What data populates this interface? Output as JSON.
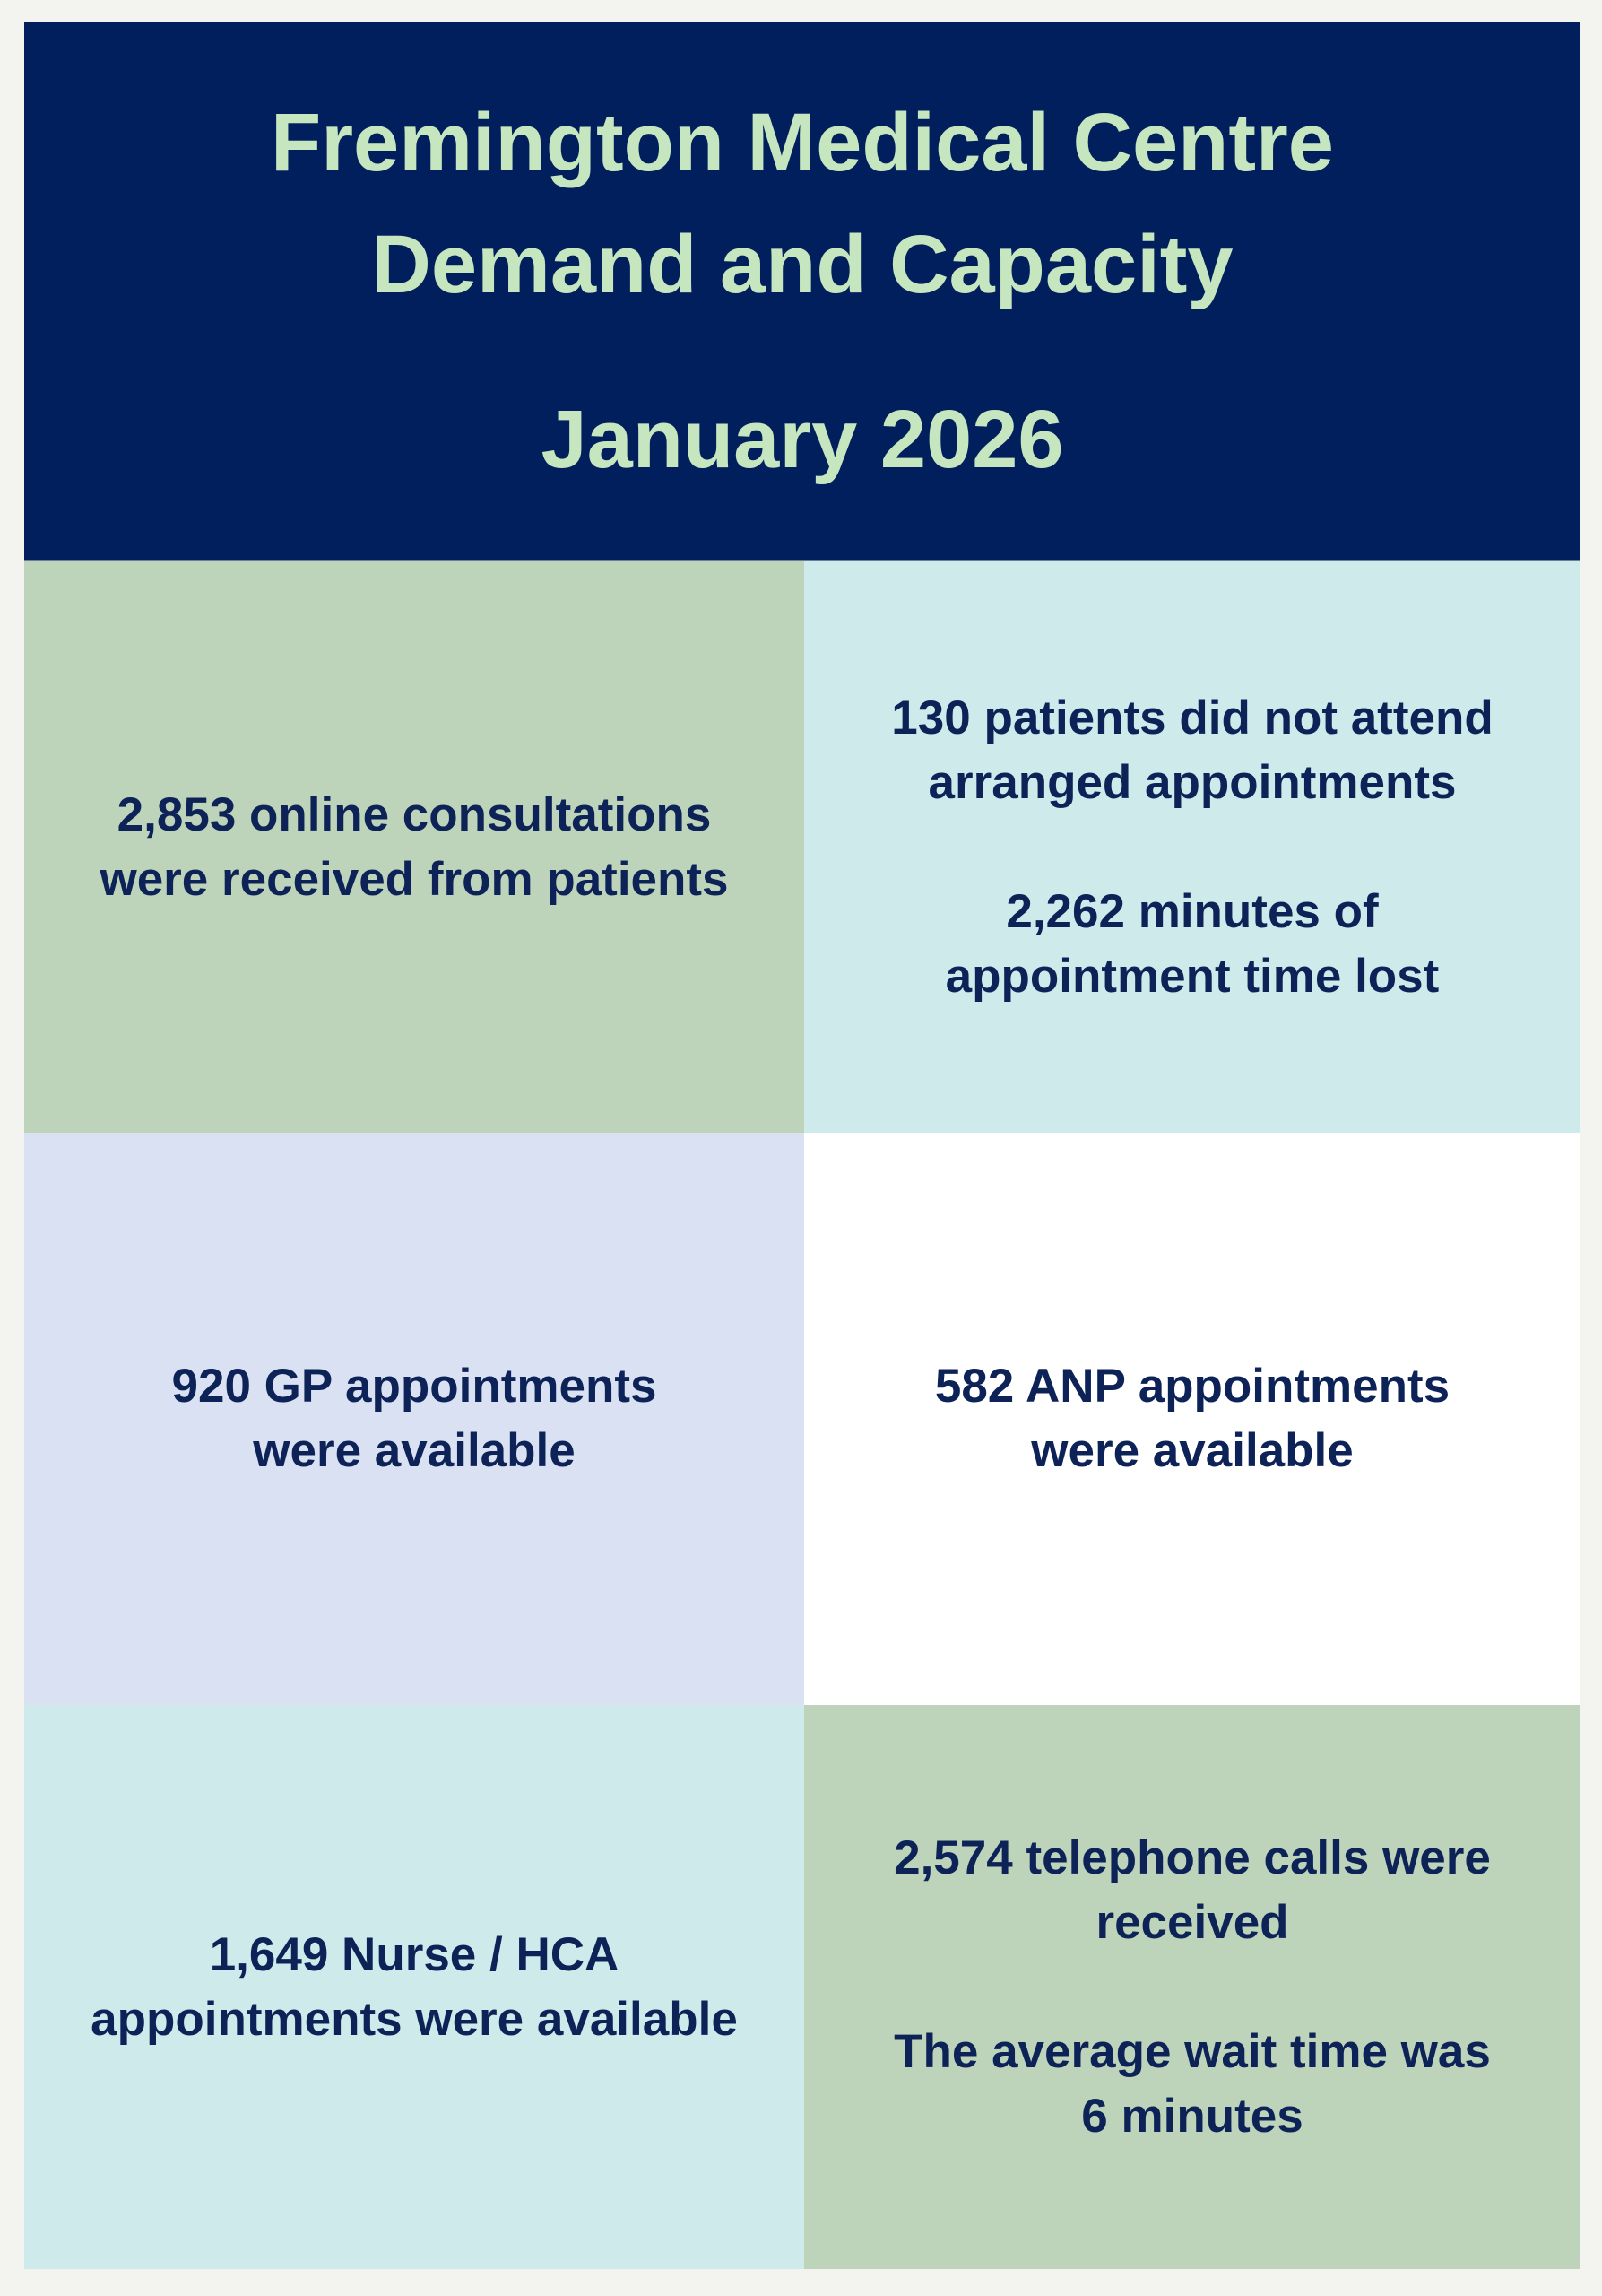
{
  "header": {
    "title_line1": "Fremington Medical Centre",
    "title_line2": "Demand and Capacity",
    "period": "January 2026"
  },
  "cells": {
    "online": {
      "line1": "2,853 online consultations",
      "line2": "were received from patients"
    },
    "dna": {
      "line1": "130 patients did not attend",
      "line2": "arranged appointments",
      "line3": "2,262 minutes of",
      "line4": "appointment time lost"
    },
    "gp": {
      "line1": "920 GP appointments",
      "line2": "were available"
    },
    "anp": {
      "line1": "582 ANP appointments",
      "line2": "were available"
    },
    "nurse": {
      "line1": "1,649 Nurse / HCA",
      "line2": "appointments were available"
    },
    "calls": {
      "line1": "2,574 telephone calls were",
      "line2": "received",
      "line3": "The average wait time was",
      "line4": "6 minutes"
    }
  },
  "colors": {
    "navy": "#001f5c",
    "title_green": "#c6e6bf",
    "green": "#bdd4ba",
    "cyan": "#ceeaea",
    "lavender": "#d9e1f2"
  }
}
